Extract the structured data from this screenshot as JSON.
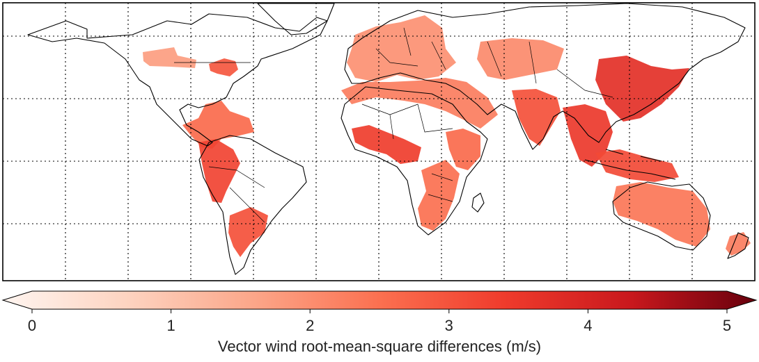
{
  "figure": {
    "colorbar": {
      "min": 0,
      "max": 5,
      "ticks": [
        "0",
        "1",
        "2",
        "3",
        "4",
        "5"
      ],
      "title": "Vector wind root-mean-square differences (m/s)",
      "colors": [
        "#fff5f0",
        "#fdd3c0",
        "#fca689",
        "#fb7050",
        "#ef3b2c",
        "#c9181d",
        "#67000d"
      ]
    },
    "map": {
      "ocean_color": "#ffffff",
      "land_outline_color": "#000000",
      "grid_style": "dotted",
      "regions": [
        {
          "name": "region-canada-prairies",
          "level": 1.8
        },
        {
          "name": "region-great-lakes",
          "level": 2.9
        },
        {
          "name": "region-central-america-caribbean",
          "level": 2.6
        },
        {
          "name": "region-andes",
          "level": 3.2
        },
        {
          "name": "region-southern-south-america",
          "level": 3.0
        },
        {
          "name": "region-europe",
          "level": 2.0
        },
        {
          "name": "region-mediterranean-middle-east",
          "level": 2.3
        },
        {
          "name": "region-west-africa",
          "level": 3.3
        },
        {
          "name": "region-east-africa",
          "level": 2.6
        },
        {
          "name": "region-southern-africa",
          "level": 2.5
        },
        {
          "name": "region-central-asia",
          "level": 2.1
        },
        {
          "name": "region-india",
          "level": 3.0
        },
        {
          "name": "region-southeast-asia",
          "level": 3.4
        },
        {
          "name": "region-east-asia",
          "level": 3.6
        },
        {
          "name": "region-indonesia",
          "level": 3.1
        },
        {
          "name": "region-australia",
          "level": 2.4
        },
        {
          "name": "region-new-zealand",
          "level": 2.3
        }
      ]
    }
  }
}
